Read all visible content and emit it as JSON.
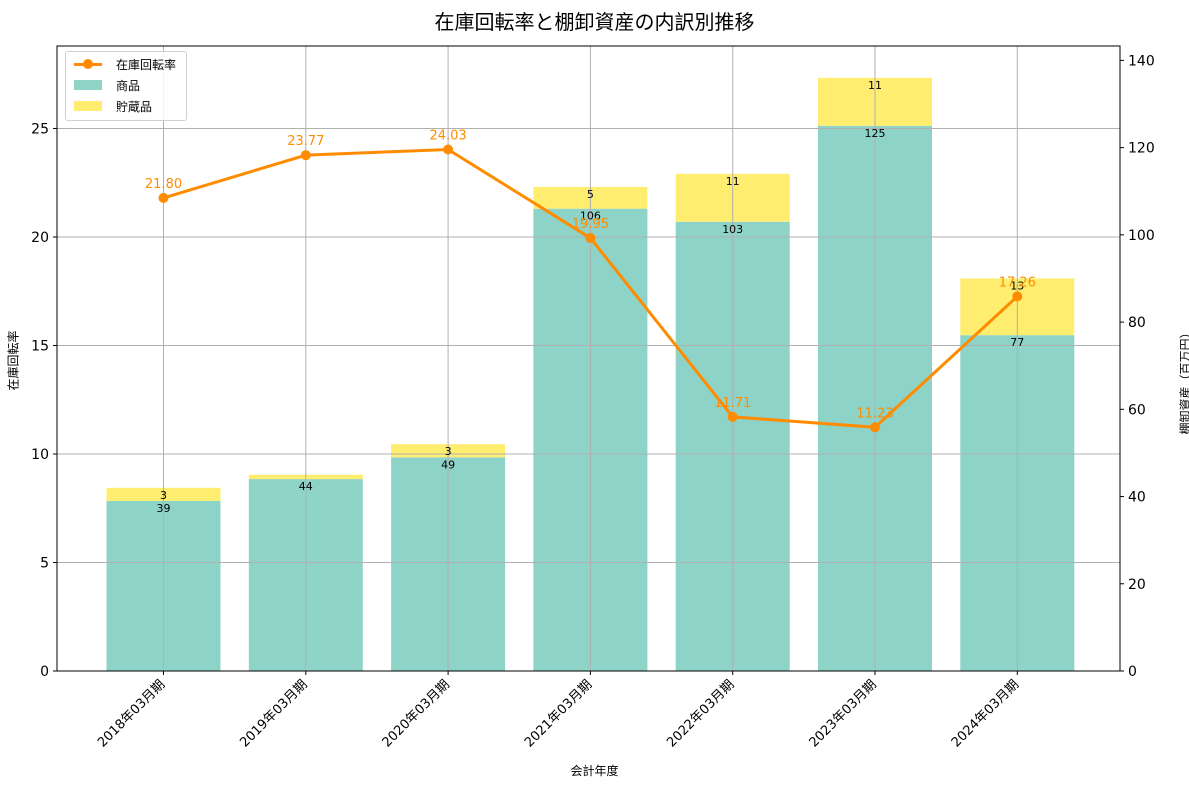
{
  "chart_data": {
    "type": "bar+line",
    "title": "在庫回転率と棚卸資産の内訳別推移",
    "xlabel": "会計年度",
    "ylabel_left": "在庫回転率",
    "ylabel_right": "棚卸資産（百万円）",
    "categories": [
      "2018年03月期",
      "2019年03月期",
      "2020年03月期",
      "2021年03月期",
      "2022年03月期",
      "2023年03月期",
      "2024年03月期"
    ],
    "series": [
      {
        "name": "在庫回転率",
        "type": "line",
        "axis": "left",
        "color": "#ff8c00",
        "values": [
          21.8,
          23.77,
          24.03,
          19.95,
          11.71,
          11.23,
          17.26
        ],
        "labels": [
          "21.80",
          "23.77",
          "24.03",
          "19.95",
          "11.71",
          "11.23",
          "17.26"
        ]
      },
      {
        "name": "商品",
        "type": "bar",
        "stacked": true,
        "axis": "right",
        "color": "#8dd3c7",
        "values": [
          39,
          44,
          49,
          106,
          103,
          125,
          77
        ]
      },
      {
        "name": "貯蔵品",
        "type": "bar",
        "stacked": true,
        "axis": "right",
        "color": "#ffed6f",
        "values": [
          3,
          1,
          3,
          5,
          11,
          11,
          13
        ],
        "labels": [
          "3",
          "",
          "3",
          "5",
          "11",
          "11",
          "13"
        ]
      }
    ],
    "ylim_left": [
      0,
      28.8
    ],
    "yticks_left": [
      0,
      5,
      10,
      15,
      20,
      25
    ],
    "ylim_right": [
      0,
      143.3
    ],
    "yticks_right": [
      0,
      20,
      40,
      60,
      80,
      100,
      120,
      140
    ],
    "grid": true,
    "legend_position": "upper left"
  },
  "legend": {
    "items": [
      {
        "label": "在庫回転率",
        "color": "#ff8c00",
        "kind": "line"
      },
      {
        "label": "商品",
        "color": "#8dd3c7",
        "kind": "bar"
      },
      {
        "label": "貯蔵品",
        "color": "#ffed6f",
        "kind": "bar"
      }
    ]
  }
}
